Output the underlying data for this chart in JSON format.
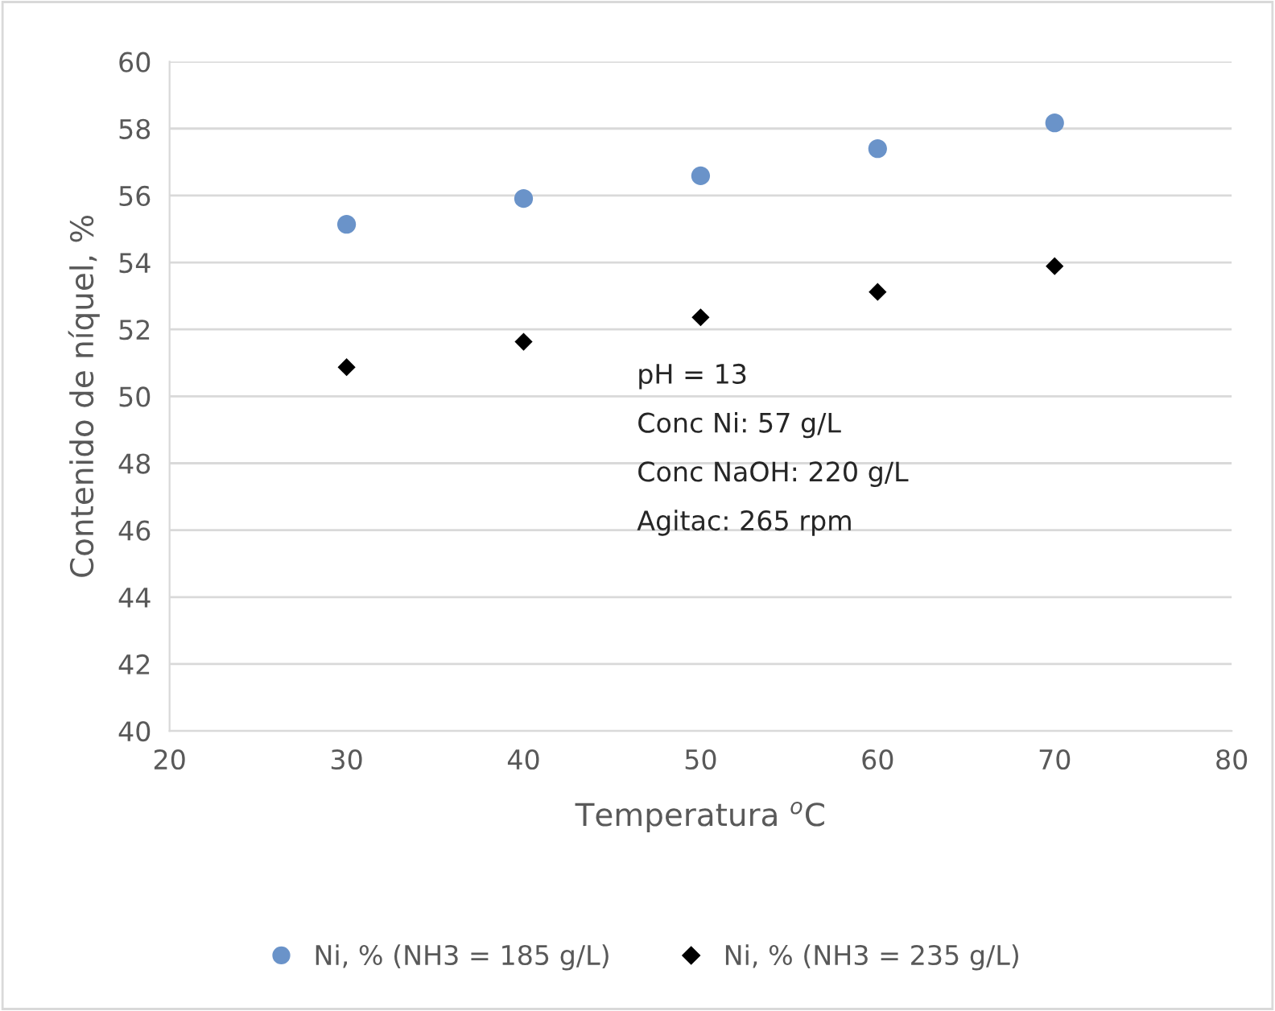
{
  "chart_data": {
    "type": "scatter",
    "xlabel": "Temperatura $^{o}$C",
    "ylabel": "Contenido de níquel, %",
    "series": [
      {
        "name": "Ni, % (NH3 = 185 g/L)",
        "color": "#6a93c9",
        "marker": "circle",
        "x": [
          30,
          40,
          50,
          60,
          70
        ],
        "values": [
          55.14,
          55.91,
          56.59,
          57.4,
          58.17
        ]
      },
      {
        "name": "Ni, % (NH3 = 235 g/L)",
        "color": "#000000",
        "marker": "diamond",
        "x": [
          30,
          40,
          50,
          60,
          70
        ],
        "values": [
          50.87,
          51.63,
          52.36,
          53.12,
          53.89
        ]
      }
    ],
    "xlim": [
      20,
      80
    ],
    "xticks": [
      20,
      30,
      40,
      50,
      60,
      70,
      80
    ],
    "ylim": [
      40,
      60
    ],
    "yticks": [
      40,
      42,
      44,
      46,
      48,
      50,
      52,
      54,
      56,
      58,
      60
    ],
    "grid": "y",
    "legend": "bottom",
    "annotations": [
      "pH = 13",
      "Conc Ni: 57 g/L",
      "Conc NaOH: 220 g/L",
      "Agitac: 265 rpm"
    ]
  }
}
